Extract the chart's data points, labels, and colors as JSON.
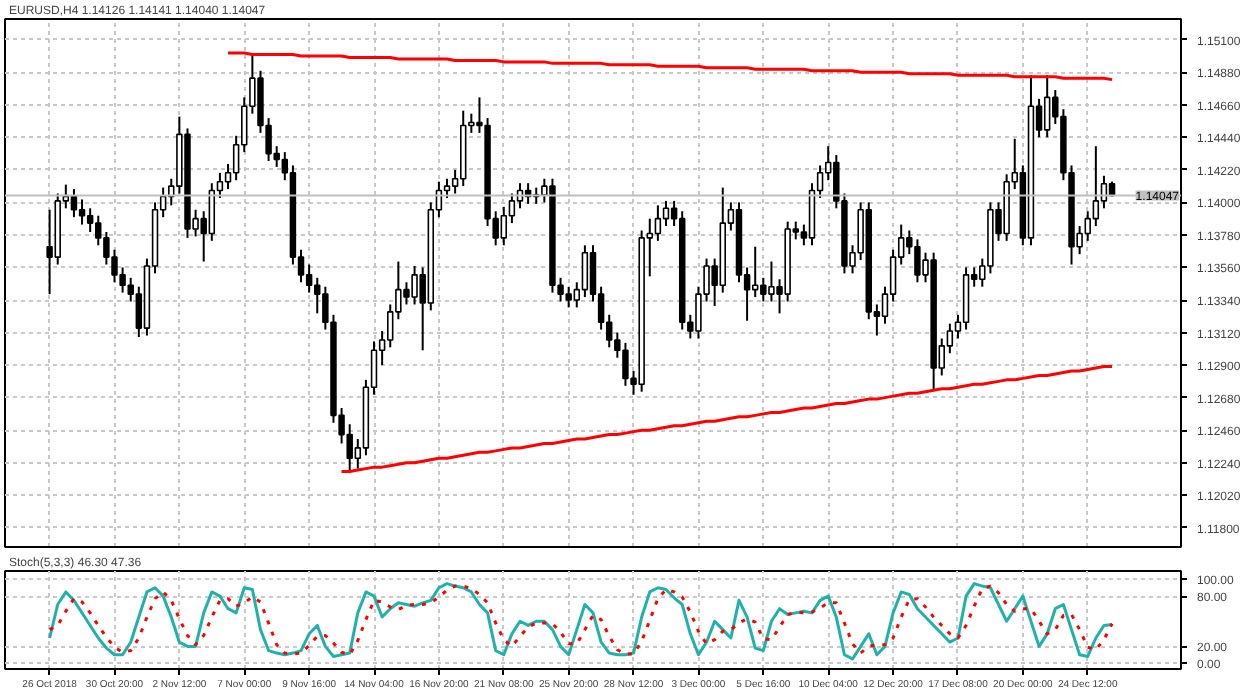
{
  "chart_data": [
    {
      "type": "candlestick",
      "title": "EURUSD,H4  1.14126 1.14141 1.14040 1.14047",
      "tick_labels": "y",
      "grid": true,
      "categories": [
        null,
        null,
        null,
        null,
        null,
        null,
        null,
        null,
        null,
        null,
        null,
        null,
        null,
        null,
        null,
        null,
        null,
        null,
        null,
        null,
        null,
        null,
        null,
        null,
        null,
        null,
        null,
        null,
        null,
        null,
        null,
        null,
        null,
        null,
        null,
        null,
        null,
        null,
        null,
        null,
        null,
        null,
        null,
        null,
        null,
        null,
        null,
        null,
        null,
        null,
        null,
        null,
        null,
        null,
        null,
        null,
        null,
        null,
        null,
        null,
        null,
        null,
        null,
        null,
        null,
        null,
        null,
        null,
        null,
        null,
        null,
        null,
        null,
        null,
        null,
        null,
        null,
        null,
        null,
        null,
        null,
        null,
        null,
        null,
        null,
        null,
        null,
        null,
        null,
        null,
        null,
        null,
        null,
        null,
        null,
        null,
        null,
        null,
        null,
        null,
        null,
        null,
        null,
        null,
        null,
        null,
        null,
        null,
        null,
        null,
        null,
        null,
        null,
        null,
        null,
        null,
        null,
        null,
        null,
        null,
        null,
        null,
        null,
        null,
        null,
        null,
        null,
        null,
        null,
        null,
        null,
        null
      ],
      "color": "#000000",
      "ohlc": [
        [
          1.137,
          1.1395,
          1.1338,
          1.1363
        ],
        [
          1.1363,
          1.1406,
          1.1358,
          1.1401
        ],
        [
          1.1401,
          1.1412,
          1.1396,
          1.1404
        ],
        [
          1.1404,
          1.1409,
          1.139,
          1.1395
        ],
        [
          1.1395,
          1.1402,
          1.1385,
          1.1391
        ],
        [
          1.1391,
          1.1396,
          1.138,
          1.1386
        ],
        [
          1.1386,
          1.1391,
          1.1371,
          1.1376
        ],
        [
          1.1376,
          1.138,
          1.1358,
          1.1363
        ],
        [
          1.1363,
          1.1368,
          1.1346,
          1.1351
        ],
        [
          1.1351,
          1.1356,
          1.1339,
          1.1344
        ],
        [
          1.1344,
          1.1349,
          1.1333,
          1.1338
        ],
        [
          1.1338,
          1.1343,
          1.1309,
          1.1315
        ],
        [
          1.1315,
          1.1362,
          1.131,
          1.1357
        ],
        [
          1.1357,
          1.14,
          1.1352,
          1.1395
        ],
        [
          1.1395,
          1.141,
          1.139,
          1.1404
        ],
        [
          1.1404,
          1.1416,
          1.1398,
          1.1411
        ],
        [
          1.1411,
          1.1458,
          1.1406,
          1.1446
        ],
        [
          1.1446,
          1.145,
          1.1376,
          1.1382
        ],
        [
          1.1382,
          1.1395,
          1.1377,
          1.1389
        ],
        [
          1.1389,
          1.1394,
          1.136,
          1.1379
        ],
        [
          1.1379,
          1.1413,
          1.1374,
          1.1408
        ],
        [
          1.1408,
          1.142,
          1.1403,
          1.1414
        ],
        [
          1.1414,
          1.1426,
          1.1409,
          1.142
        ],
        [
          1.142,
          1.1445,
          1.1415,
          1.1439
        ],
        [
          1.1439,
          1.1471,
          1.1434,
          1.1465
        ],
        [
          1.1465,
          1.1501,
          1.146,
          1.1484
        ],
        [
          1.1484,
          1.1489,
          1.1447,
          1.1452
        ],
        [
          1.1452,
          1.1457,
          1.1428,
          1.1433
        ],
        [
          1.1433,
          1.1438,
          1.1424,
          1.1429
        ],
        [
          1.1429,
          1.1434,
          1.1415,
          1.142
        ],
        [
          1.142,
          1.1425,
          1.1358,
          1.1363
        ],
        [
          1.1363,
          1.1368,
          1.1346,
          1.1351
        ],
        [
          1.1351,
          1.1358,
          1.1339,
          1.1344
        ],
        [
          1.1344,
          1.1349,
          1.1325,
          1.1338
        ],
        [
          1.1338,
          1.1343,
          1.1314,
          1.1319
        ],
        [
          1.1319,
          1.1324,
          1.1251,
          1.1256
        ],
        [
          1.1256,
          1.1261,
          1.1237,
          1.1243
        ],
        [
          1.1243,
          1.125,
          1.1217,
          1.1227
        ],
        [
          1.1227,
          1.124,
          1.122,
          1.1234
        ],
        [
          1.1234,
          1.128,
          1.1229,
          1.1275
        ],
        [
          1.1275,
          1.1306,
          1.127,
          1.13
        ],
        [
          1.13,
          1.1313,
          1.129,
          1.1307
        ],
        [
          1.1307,
          1.1331,
          1.1302,
          1.1326
        ],
        [
          1.1326,
          1.136,
          1.1321,
          1.1341
        ],
        [
          1.1341,
          1.1346,
          1.1331,
          1.1336
        ],
        [
          1.1336,
          1.1357,
          1.1331,
          1.1351
        ],
        [
          1.1351,
          1.1356,
          1.13,
          1.1332
        ],
        [
          1.1332,
          1.14,
          1.1327,
          1.1395
        ],
        [
          1.1395,
          1.1414,
          1.139,
          1.1408
        ],
        [
          1.1408,
          1.1416,
          1.1403,
          1.1411
        ],
        [
          1.1411,
          1.1422,
          1.1406,
          1.1416
        ],
        [
          1.1416,
          1.1462,
          1.1411,
          1.1452
        ],
        [
          1.1452,
          1.146,
          1.1447,
          1.1454
        ],
        [
          1.1454,
          1.1471,
          1.1447,
          1.1452
        ],
        [
          1.1452,
          1.1457,
          1.1384,
          1.1389
        ],
        [
          1.1389,
          1.1394,
          1.1371,
          1.1376
        ],
        [
          1.1376,
          1.1397,
          1.1371,
          1.1391
        ],
        [
          1.1391,
          1.1406,
          1.1386,
          1.1401
        ],
        [
          1.1401,
          1.1413,
          1.1396,
          1.1408
        ],
        [
          1.1408,
          1.1413,
          1.1399,
          1.1404
        ],
        [
          1.1404,
          1.141,
          1.1399,
          1.1405
        ],
        [
          1.1405,
          1.1416,
          1.14,
          1.1411
        ],
        [
          1.1411,
          1.1416,
          1.1339,
          1.1344
        ],
        [
          1.1344,
          1.1349,
          1.1333,
          1.1338
        ],
        [
          1.1338,
          1.1343,
          1.1329,
          1.1334
        ],
        [
          1.1334,
          1.1346,
          1.1329,
          1.1341
        ],
        [
          1.1341,
          1.1371,
          1.1336,
          1.1366
        ],
        [
          1.1366,
          1.1371,
          1.1333,
          1.1338
        ],
        [
          1.1338,
          1.1343,
          1.1314,
          1.1319
        ],
        [
          1.1319,
          1.1324,
          1.1302,
          1.1307
        ],
        [
          1.1307,
          1.1312,
          1.1295,
          1.13
        ],
        [
          1.13,
          1.1305,
          1.1276,
          1.1281
        ],
        [
          1.1281,
          1.1286,
          1.127,
          1.1277
        ],
        [
          1.1277,
          1.1381,
          1.1272,
          1.1376
        ],
        [
          1.1376,
          1.1389,
          1.135,
          1.1379
        ],
        [
          1.1379,
          1.1398,
          1.1374,
          1.1389
        ],
        [
          1.1389,
          1.1401,
          1.1384,
          1.1396
        ],
        [
          1.1396,
          1.1401,
          1.1384,
          1.1389
        ],
        [
          1.1389,
          1.1394,
          1.1314,
          1.1319
        ],
        [
          1.1319,
          1.1324,
          1.1308,
          1.1313
        ],
        [
          1.1313,
          1.1343,
          1.1308,
          1.1338
        ],
        [
          1.1338,
          1.1362,
          1.1333,
          1.1357
        ],
        [
          1.1357,
          1.1362,
          1.133,
          1.1344
        ],
        [
          1.1344,
          1.141,
          1.1339,
          1.1386
        ],
        [
          1.1386,
          1.14,
          1.1381,
          1.1395
        ],
        [
          1.1395,
          1.14,
          1.1346,
          1.1351
        ],
        [
          1.1351,
          1.1356,
          1.132,
          1.1341
        ],
        [
          1.1341,
          1.137,
          1.1336,
          1.1344
        ],
        [
          1.1344,
          1.1349,
          1.1333,
          1.1338
        ],
        [
          1.1338,
          1.136,
          1.1333,
          1.1343
        ],
        [
          1.1343,
          1.1348,
          1.1325,
          1.1338
        ],
        [
          1.1338,
          1.1387,
          1.1333,
          1.1382
        ],
        [
          1.1382,
          1.1387,
          1.1375,
          1.138
        ],
        [
          1.138,
          1.1385,
          1.1371,
          1.1376
        ],
        [
          1.1376,
          1.1413,
          1.1371,
          1.1408
        ],
        [
          1.1408,
          1.1425,
          1.1403,
          1.142
        ],
        [
          1.142,
          1.1438,
          1.1415,
          1.1427
        ],
        [
          1.1427,
          1.1432,
          1.1396,
          1.1401
        ],
        [
          1.1401,
          1.1406,
          1.1352,
          1.1357
        ],
        [
          1.1357,
          1.1371,
          1.1352,
          1.1366
        ],
        [
          1.1366,
          1.14,
          1.1361,
          1.1395
        ],
        [
          1.1395,
          1.14,
          1.1321,
          1.1326
        ],
        [
          1.1326,
          1.1331,
          1.131,
          1.1323
        ],
        [
          1.1323,
          1.1343,
          1.1318,
          1.1338
        ],
        [
          1.1338,
          1.1368,
          1.1333,
          1.1363
        ],
        [
          1.1363,
          1.1385,
          1.1358,
          1.1376
        ],
        [
          1.1376,
          1.1381,
          1.1365,
          1.137
        ],
        [
          1.137,
          1.1375,
          1.1346,
          1.1351
        ],
        [
          1.1351,
          1.1366,
          1.1346,
          1.1361
        ],
        [
          1.1361,
          1.1366,
          1.1273,
          1.1288
        ],
        [
          1.1288,
          1.1308,
          1.1283,
          1.1303
        ],
        [
          1.1303,
          1.1318,
          1.1298,
          1.1313
        ],
        [
          1.1313,
          1.1324,
          1.1308,
          1.1319
        ],
        [
          1.1319,
          1.1356,
          1.1314,
          1.1351
        ],
        [
          1.1351,
          1.1356,
          1.1343,
          1.1348
        ],
        [
          1.1348,
          1.1362,
          1.1343,
          1.1357
        ],
        [
          1.1357,
          1.14,
          1.1352,
          1.1395
        ],
        [
          1.1395,
          1.14,
          1.1374,
          1.1379
        ],
        [
          1.1379,
          1.1419,
          1.1374,
          1.1414
        ],
        [
          1.1414,
          1.1443,
          1.1409,
          1.142
        ],
        [
          1.142,
          1.1425,
          1.1371,
          1.1376
        ],
        [
          1.1376,
          1.1486,
          1.1371,
          1.1465
        ],
        [
          1.1465,
          1.147,
          1.1444,
          1.1449
        ],
        [
          1.1449,
          1.1486,
          1.1444,
          1.1471
        ],
        [
          1.1471,
          1.1476,
          1.1453,
          1.1458
        ],
        [
          1.1458,
          1.1463,
          1.1415,
          1.142
        ],
        [
          1.142,
          1.1425,
          1.1358,
          1.137
        ],
        [
          1.137,
          1.1384,
          1.1365,
          1.1379
        ],
        [
          1.1379,
          1.1394,
          1.1374,
          1.1389
        ],
        [
          1.1389,
          1.1438,
          1.1384,
          1.1401
        ],
        [
          1.1401,
          1.1418,
          1.1396,
          1.14126
        ],
        [
          1.14126,
          1.14141,
          1.1404,
          1.14047
        ]
      ],
      "series": [
        {
          "type": "line",
          "color": "#ff0000",
          "values": [
            null,
            null,
            null,
            null,
            null,
            null,
            null,
            null,
            null,
            null,
            null,
            null,
            null,
            null,
            null,
            null,
            null,
            null,
            null,
            null,
            null,
            null,
            1.1501,
            1.1501,
            1.1501,
            1.15,
            1.15,
            1.15,
            1.15,
            1.15,
            1.15,
            1.1499,
            1.1499,
            1.1499,
            1.1499,
            1.1499,
            1.1499,
            1.1498,
            1.1498,
            1.1498,
            1.1498,
            1.1498,
            1.1498,
            1.1497,
            1.1497,
            1.1497,
            1.1497,
            1.1497,
            1.1497,
            1.1497,
            1.1496,
            1.1496,
            1.1496,
            1.1496,
            1.1496,
            1.1496,
            1.1495,
            1.1495,
            1.1495,
            1.1495,
            1.1495,
            1.1495,
            1.1494,
            1.1494,
            1.1494,
            1.1494,
            1.1494,
            1.1494,
            1.1494,
            1.1493,
            1.1493,
            1.1493,
            1.1493,
            1.1493,
            1.1493,
            1.1492,
            1.1492,
            1.1492,
            1.1492,
            1.1492,
            1.1492,
            1.1491,
            1.1491,
            1.1491,
            1.1491,
            1.1491,
            1.1491,
            1.149,
            1.149,
            1.149,
            1.149,
            1.149,
            1.149,
            1.149,
            1.1489,
            1.1489,
            1.1489,
            1.1489,
            1.1489,
            1.1489,
            1.1488,
            1.1488,
            1.1488,
            1.1488,
            1.1488,
            1.1488,
            1.1487,
            1.1487,
            1.1487,
            1.1487,
            1.1487,
            1.1487,
            1.1486,
            1.1486,
            1.1486,
            1.1486,
            1.1486,
            1.1486,
            1.1486,
            1.1485,
            1.1485,
            1.1485,
            1.1485,
            1.1485,
            1.1485,
            1.1484,
            1.1484,
            1.1484,
            1.1484,
            1.1484,
            1.1484,
            1.1483
          ]
        },
        {
          "type": "line",
          "color": "#ff0000",
          "values": [
            null,
            null,
            null,
            null,
            null,
            null,
            null,
            null,
            null,
            null,
            null,
            null,
            null,
            null,
            null,
            null,
            null,
            null,
            null,
            null,
            null,
            null,
            null,
            null,
            null,
            null,
            null,
            null,
            null,
            null,
            null,
            null,
            null,
            null,
            null,
            null,
            1.1218,
            1.1218,
            1.1219,
            1.122,
            1.1221,
            1.1221,
            1.1222,
            1.1223,
            1.1224,
            1.1224,
            1.1225,
            1.1226,
            1.1227,
            1.1227,
            1.1228,
            1.1229,
            1.123,
            1.1231,
            1.1231,
            1.1232,
            1.1233,
            1.1234,
            1.1234,
            1.1235,
            1.1236,
            1.1237,
            1.1237,
            1.1238,
            1.1239,
            1.124,
            1.124,
            1.1241,
            1.1242,
            1.1243,
            1.1243,
            1.1244,
            1.1245,
            1.1246,
            1.1246,
            1.1247,
            1.1248,
            1.1249,
            1.1249,
            1.125,
            1.1251,
            1.1252,
            1.1252,
            1.1253,
            1.1254,
            1.1255,
            1.1255,
            1.1256,
            1.1257,
            1.1258,
            1.1258,
            1.1259,
            1.126,
            1.1261,
            1.1261,
            1.1262,
            1.1263,
            1.1264,
            1.1264,
            1.1265,
            1.1266,
            1.1267,
            1.1267,
            1.1268,
            1.1269,
            1.127,
            1.1271,
            1.1271,
            1.1272,
            1.1273,
            1.1274,
            1.1274,
            1.1275,
            1.1276,
            1.1277,
            1.1277,
            1.1278,
            1.1279,
            1.128,
            1.128,
            1.1281,
            1.1282,
            1.1283,
            1.1283,
            1.1284,
            1.1285,
            1.1286,
            1.1286,
            1.1287,
            1.1288,
            1.1289,
            1.1289
          ]
        }
      ],
      "ref_lines": [
        {
          "axis": "y",
          "value": 1.14047,
          "label": "1.14047",
          "color": "#c0c0c0"
        }
      ],
      "ylim": [
        1.1167,
        1.1524
      ],
      "yticks": [
        {
          "value": 1.118,
          "label": "1.11800"
        },
        {
          "value": 1.1202,
          "label": "1.12020"
        },
        {
          "value": 1.1224,
          "label": "1.12240"
        },
        {
          "value": 1.1246,
          "label": "1.12460"
        },
        {
          "value": 1.1268,
          "label": "1.12680"
        },
        {
          "value": 1.129,
          "label": "1.12900"
        },
        {
          "value": 1.1312,
          "label": "1.13120"
        },
        {
          "value": 1.1334,
          "label": "1.13340"
        },
        {
          "value": 1.1356,
          "label": "1.13560"
        },
        {
          "value": 1.1378,
          "label": "1.13780"
        },
        {
          "value": 1.14,
          "label": "1.14000"
        },
        {
          "value": 1.1422,
          "label": "1.14220"
        },
        {
          "value": 1.1444,
          "label": "1.14440"
        },
        {
          "value": 1.1466,
          "label": "1.14660"
        },
        {
          "value": 1.1488,
          "label": "1.14880"
        },
        {
          "value": 1.151,
          "label": "1.15100"
        }
      ]
    },
    {
      "type": "line",
      "title": "Stoch(5,3,3) 46.30 47.36",
      "grid": true,
      "categories": [
        "26 Oct 2018",
        null,
        null,
        null,
        null,
        null,
        null,
        null,
        "30 Oct 20:00",
        null,
        null,
        null,
        null,
        null,
        null,
        null,
        "2 Nov 12:00",
        null,
        null,
        null,
        null,
        null,
        null,
        null,
        "7 Nov 00:00",
        null,
        null,
        null,
        null,
        null,
        null,
        null,
        "9 Nov 16:00",
        null,
        null,
        null,
        null,
        null,
        null,
        null,
        "14 Nov 04:00",
        null,
        null,
        null,
        null,
        null,
        null,
        null,
        "16 Nov 20:00",
        null,
        null,
        null,
        null,
        null,
        null,
        null,
        "21 Nov 08:00",
        null,
        null,
        null,
        null,
        null,
        null,
        null,
        "25 Nov 20:00",
        null,
        null,
        null,
        null,
        null,
        null,
        null,
        "28 Nov 12:00",
        null,
        null,
        null,
        null,
        null,
        null,
        null,
        "3 Dec 00:00",
        null,
        null,
        null,
        null,
        null,
        null,
        null,
        "5 Dec 16:00",
        null,
        null,
        null,
        null,
        null,
        null,
        null,
        "10 Dec 04:00",
        null,
        null,
        null,
        null,
        null,
        null,
        null,
        "12 Dec 20:00",
        null,
        null,
        null,
        null,
        null,
        null,
        null,
        "17 Dec 08:00",
        null,
        null,
        null,
        null,
        null,
        null,
        null,
        "20 Dec 00:00",
        null,
        null,
        null,
        null,
        null,
        null,
        null,
        "24 Dec 12:00",
        null,
        null,
        null
      ],
      "series": [
        {
          "color": "#20b2aa",
          "line_style": "solid",
          "values": [
            30,
            70,
            85,
            75,
            60,
            45,
            30,
            18,
            10,
            10,
            25,
            55,
            85,
            90,
            80,
            55,
            25,
            20,
            20,
            60,
            85,
            80,
            65,
            60,
            90,
            88,
            40,
            15,
            12,
            10,
            12,
            15,
            35,
            45,
            20,
            8,
            10,
            12,
            60,
            85,
            80,
            55,
            65,
            72,
            70,
            68,
            72,
            75,
            90,
            95,
            92,
            90,
            85,
            70,
            60,
            15,
            10,
            35,
            50,
            45,
            50,
            50,
            40,
            20,
            10,
            40,
            70,
            60,
            25,
            12,
            10,
            10,
            12,
            55,
            85,
            90,
            88,
            78,
            70,
            35,
            10,
            25,
            50,
            40,
            30,
            75,
            55,
            18,
            15,
            50,
            65,
            58,
            60,
            62,
            60,
            75,
            80,
            55,
            10,
            5,
            20,
            35,
            10,
            20,
            60,
            85,
            82,
            65,
            55,
            45,
            35,
            25,
            30,
            80,
            95,
            92,
            90,
            70,
            50,
            65,
            80,
            50,
            20,
            35,
            65,
            70,
            40,
            10,
            8,
            30,
            45,
            46
          ]
        },
        {
          "color": "#ff0000",
          "line_style": "dotted",
          "values": [
            40,
            45,
            62,
            77,
            73,
            60,
            45,
            31,
            19,
            13,
            15,
            30,
            55,
            77,
            85,
            75,
            53,
            33,
            22,
            33,
            55,
            75,
            77,
            68,
            72,
            79,
            73,
            48,
            22,
            12,
            11,
            12,
            21,
            32,
            33,
            24,
            13,
            10,
            27,
            52,
            75,
            73,
            67,
            64,
            69,
            70,
            70,
            72,
            79,
            87,
            92,
            92,
            89,
            82,
            72,
            48,
            28,
            20,
            32,
            43,
            48,
            48,
            47,
            37,
            23,
            23,
            40,
            57,
            52,
            32,
            16,
            11,
            11,
            26,
            51,
            77,
            88,
            85,
            79,
            61,
            38,
            23,
            28,
            38,
            40,
            48,
            53,
            49,
            29,
            28,
            43,
            58,
            61,
            60,
            61,
            66,
            72,
            72,
            48,
            23,
            12,
            20,
            22,
            22,
            30,
            55,
            76,
            77,
            67,
            55,
            45,
            35,
            30,
            45,
            68,
            89,
            92,
            84,
            70,
            62,
            65,
            65,
            50,
            35,
            40,
            57,
            58,
            40,
            19,
            16,
            28,
            47
          ]
        }
      ],
      "ylim": [
        -7,
        110
      ],
      "yticks": [
        {
          "value": 0,
          "label": "0.00"
        },
        {
          "value": 20,
          "label": "20.00"
        },
        {
          "value": 80,
          "label": "80.00"
        },
        {
          "value": 100,
          "label": "100.00"
        }
      ]
    }
  ]
}
